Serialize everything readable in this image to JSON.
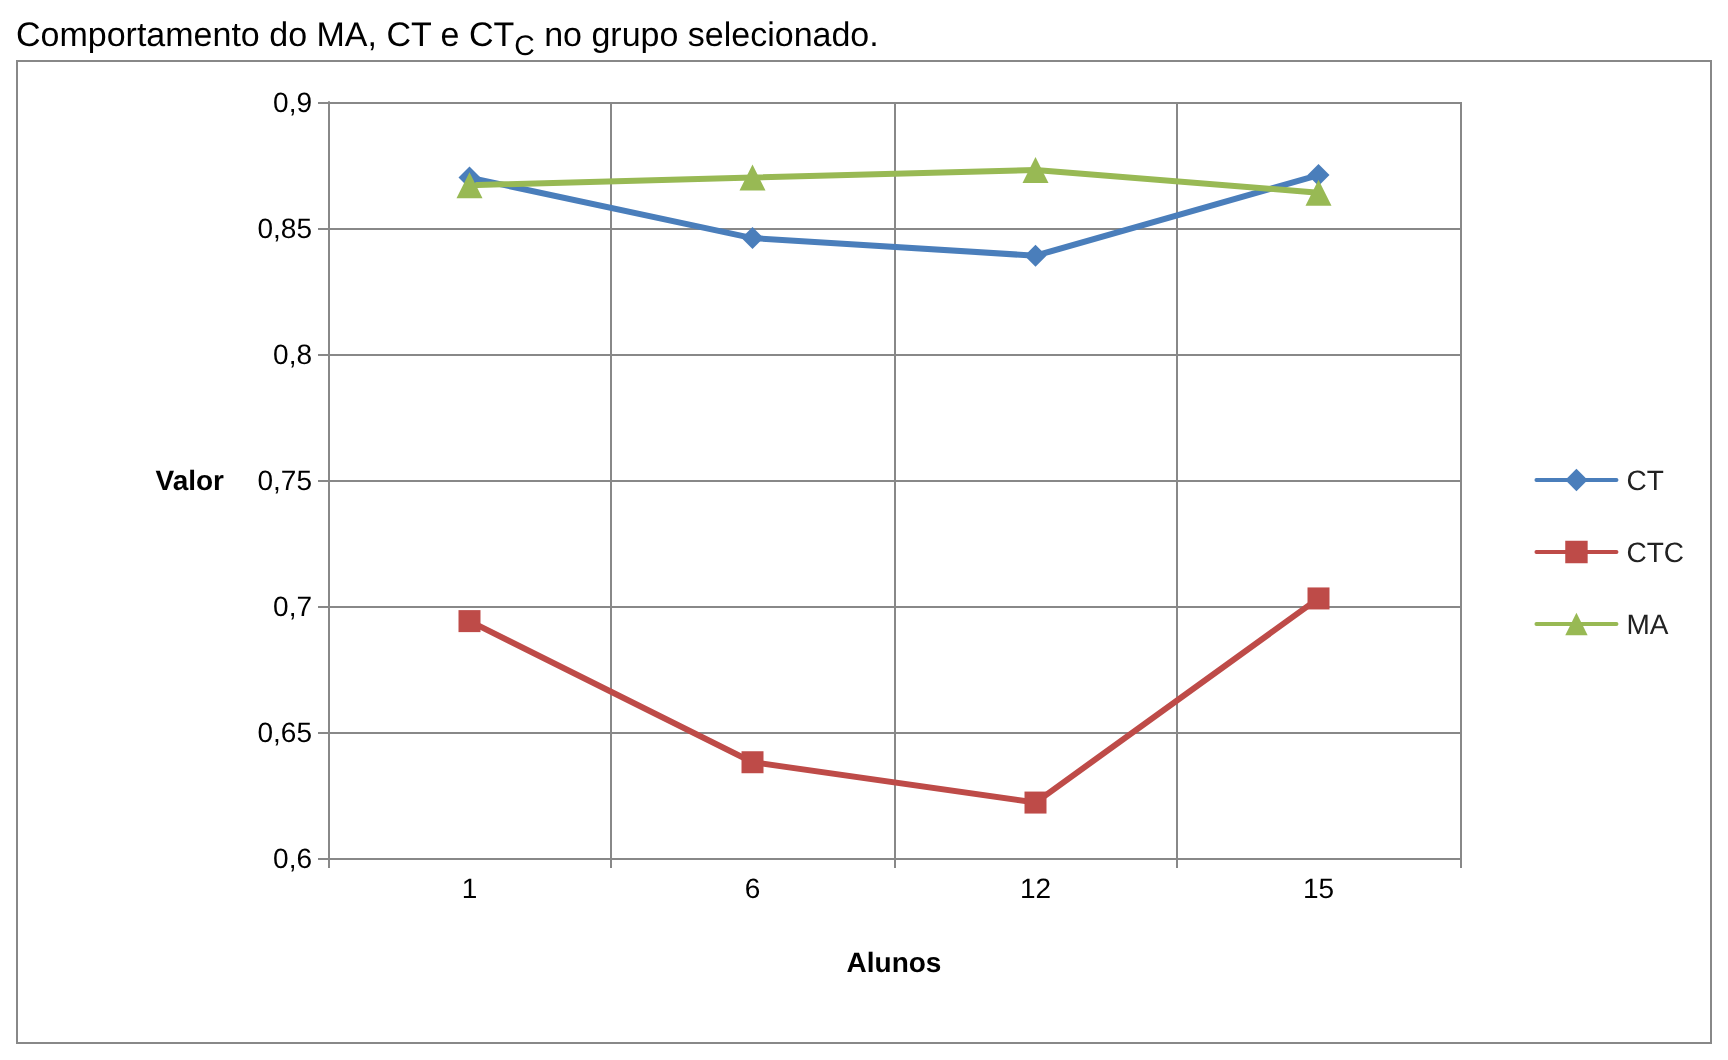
{
  "chart_data": {
    "type": "line",
    "title": "Comportamento do MA, CT e CT$_{C}$ no grupo selecionado.",
    "xlabel": "Alunos",
    "ylabel": "Valor",
    "categories": [
      "1",
      "6",
      "12",
      "15"
    ],
    "series": [
      {
        "name": "CT",
        "color": "#4a7ebb",
        "marker": "diamond",
        "values": [
          0.87,
          0.846,
          0.839,
          0.871
        ]
      },
      {
        "name": "CTC",
        "color": "#be4b48",
        "marker": "square",
        "values": [
          0.694,
          0.638,
          0.622,
          0.703
        ]
      },
      {
        "name": "MA",
        "color": "#98b954",
        "marker": "triangle",
        "values": [
          0.867,
          0.87,
          0.873,
          0.864
        ]
      }
    ],
    "ylim": [
      0.6,
      0.9
    ],
    "yticks": [
      {
        "value": 0.6,
        "label": "0,6"
      },
      {
        "value": 0.65,
        "label": "0,65"
      },
      {
        "value": 0.7,
        "label": "0,7"
      },
      {
        "value": 0.75,
        "label": "0,75"
      },
      {
        "value": 0.8,
        "label": "0,8"
      },
      {
        "value": 0.85,
        "label": "0,85"
      },
      {
        "value": 0.9,
        "label": "0,9"
      }
    ],
    "grid": true,
    "legend": "right",
    "line_style": "solid"
  }
}
